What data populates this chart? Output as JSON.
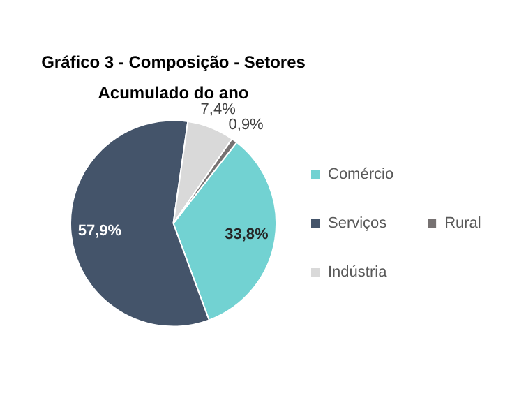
{
  "chart_data": {
    "type": "pie",
    "title": "Gráfico 3 - Composição - Setores",
    "subtitle": "Acumulado do ano",
    "categories": [
      "Comércio",
      "Serviços",
      "Indústria",
      "Rural"
    ],
    "values": [
      33.8,
      57.9,
      7.4,
      0.9
    ],
    "colors": [
      "#72d2d2",
      "#44546a",
      "#d9d9d9",
      "#767171"
    ],
    "value_labels": [
      "33,8%",
      "57,9%",
      "7,4%",
      "0,9%"
    ],
    "legend": "right"
  }
}
